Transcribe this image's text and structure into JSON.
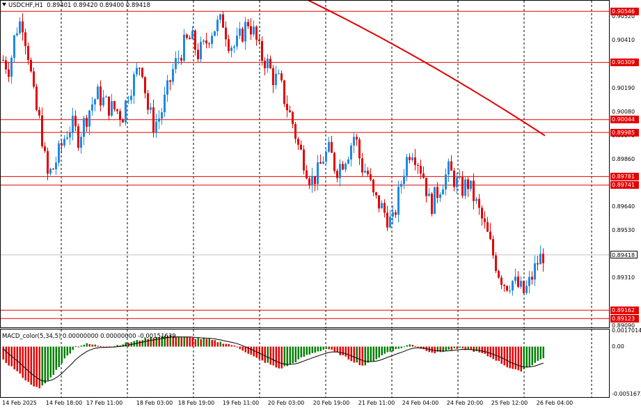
{
  "header": {
    "symbol": "USDCHF,H1",
    "ohlc": "0.89401 0.89420 0.89400 0.89418"
  },
  "macd": {
    "label": "MACD_color(5,34,5) 0.00000000 0.00000000 -0.00151639",
    "axis_labels": [
      "0.0017014",
      "0.00",
      "-0.0051673"
    ]
  },
  "price_axis": {
    "ticks": [
      "0.90520",
      "0.90410",
      "0.90190",
      "0.90080",
      "0.89970",
      "0.89860",
      "0.89640",
      "0.89530",
      "0.89310",
      "0.89090"
    ],
    "tick_values": [
      0.9052,
      0.9041,
      0.9019,
      0.9008,
      0.8997,
      0.8986,
      0.8964,
      0.8953,
      0.8931,
      0.8909
    ],
    "range": [
      0.89082,
      0.90595
    ]
  },
  "horizontal_levels": [
    {
      "label": "0.90546",
      "value": 0.90546
    },
    {
      "label": "0.90309",
      "value": 0.90309
    },
    {
      "label": "0.90044",
      "value": 0.90044
    },
    {
      "label": "0.89985",
      "value": 0.89985
    },
    {
      "label": "0.89781",
      "value": 0.89781
    },
    {
      "label": "0.89741",
      "value": 0.89741
    },
    {
      "label": "0.89162",
      "value": 0.89162
    },
    {
      "label": "0.89123",
      "value": 0.89123
    }
  ],
  "current_price": {
    "label": "0.89418",
    "value": 0.89418
  },
  "time_axis": {
    "labels": [
      "14 Feb 2025",
      "14 Feb 18:00",
      "17 Feb 11:00",
      "18 Feb 03:00",
      "18 Feb 19:00",
      "19 Feb 11:00",
      "20 Feb 03:00",
      "20 Feb 19:00",
      "21 Feb 11:00",
      "24 Feb 04:00",
      "24 Feb 20:00",
      "25 Feb 12:00",
      "26 Feb 04:00"
    ]
  },
  "colors": {
    "bull": "#1e88e5",
    "bear": "#e50000",
    "level_line": "#e50000",
    "ma_line": "#e00000",
    "macd_up": "#008000",
    "macd_down": "#e50000",
    "grid": "#000000"
  },
  "chart_data": {
    "type": "candlestick",
    "timeframe": "H1",
    "close_path": [
      0.9032,
      0.9028,
      0.9046,
      0.9051,
      0.9035,
      0.9012,
      0.9001,
      0.8978,
      0.8982,
      0.899,
      0.8998,
      0.9002,
      0.8996,
      0.9004,
      0.9011,
      0.9016,
      0.9013,
      0.901,
      0.9009,
      0.9006,
      0.9018,
      0.9024,
      0.9032,
      0.901,
      0.9002,
      0.9006,
      0.9016,
      0.9027,
      0.9034,
      0.904,
      0.9042,
      0.9035,
      0.9038,
      0.9045,
      0.9048,
      0.905,
      0.904,
      0.9038,
      0.9044,
      0.905,
      0.9044,
      0.9034,
      0.9031,
      0.9024,
      0.9022,
      0.9012,
      0.9004,
      0.8992,
      0.8985,
      0.8976,
      0.8979,
      0.8987,
      0.899,
      0.8981,
      0.8985,
      0.899,
      0.8998,
      0.8983,
      0.898,
      0.8968,
      0.8965,
      0.896,
      0.8956,
      0.897,
      0.8984,
      0.8992,
      0.8986,
      0.8978,
      0.8964,
      0.897,
      0.8976,
      0.8981,
      0.8976,
      0.8972,
      0.8975,
      0.8968,
      0.896,
      0.8952,
      0.8942,
      0.8933,
      0.8928,
      0.893,
      0.8927,
      0.8924,
      0.893,
      0.8938,
      0.8942
    ],
    "ma_series": {
      "start": 0.90625,
      "end": 0.8997
    },
    "macd_histogram": [
      -0.0015,
      -0.0025,
      -0.0038,
      -0.0046,
      -0.0033,
      -0.0015,
      0.0,
      0.0003,
      0.0001,
      0.0,
      0.0003,
      0.0006,
      0.0009,
      0.0011,
      0.0012,
      0.001,
      0.0009,
      0.0008,
      0.0005,
      0.0002,
      -0.0004,
      -0.0012,
      -0.0018,
      -0.0024,
      -0.0019,
      -0.0011,
      -0.0006,
      -0.0002,
      -0.0008,
      -0.0015,
      -0.0021,
      -0.0014,
      -0.0006,
      -0.0002,
      0.0003,
      -0.0003,
      -0.0007,
      -0.0004,
      -0.0002,
      -0.0004,
      -0.0008,
      -0.0014,
      -0.0022,
      -0.0027,
      -0.002,
      -0.0012
    ]
  }
}
